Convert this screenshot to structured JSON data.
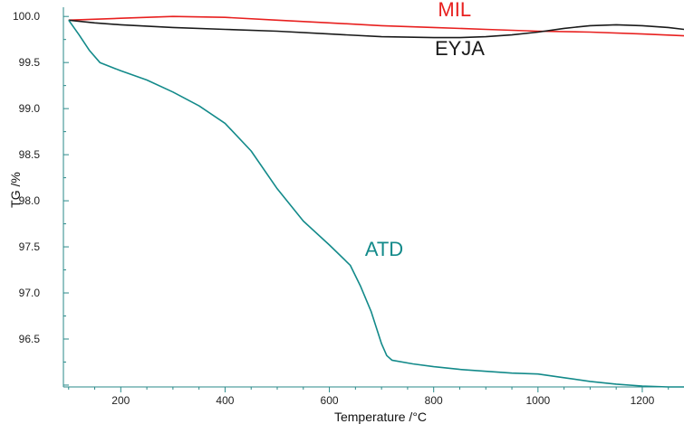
{
  "chart_data": {
    "type": "line",
    "title": "",
    "xlabel": "Temperature /°C",
    "ylabel": "TG /%",
    "xlim": [
      90,
      1280
    ],
    "ylim": [
      95.98,
      100.1
    ],
    "x_ticks": [
      200,
      400,
      600,
      800,
      1000,
      1200
    ],
    "x_tick_labels": [
      "200",
      "400",
      "600",
      "800",
      "1000",
      "1200"
    ],
    "y_ticks": [
      96.5,
      97.0,
      97.5,
      98.0,
      98.5,
      99.0,
      99.5,
      100.0
    ],
    "y_tick_labels": [
      "96.5",
      "97.0",
      "97.5",
      "98.0",
      "98.5",
      "99.0",
      "99.5",
      "100.0"
    ],
    "grid": false,
    "legend": "inline labels next to curves",
    "series": [
      {
        "name": "MIL",
        "color": "#e8201f",
        "x": [
          100,
          200,
          300,
          400,
          500,
          600,
          700,
          800,
          900,
          1000,
          1100,
          1200,
          1280
        ],
        "values": [
          99.96,
          99.98,
          100.0,
          99.99,
          99.96,
          99.93,
          99.9,
          99.88,
          99.86,
          99.84,
          99.83,
          99.81,
          99.79
        ]
      },
      {
        "name": "EYJA",
        "color": "#1a1a1a",
        "x": [
          100,
          150,
          200,
          300,
          400,
          500,
          600,
          700,
          800,
          850,
          900,
          950,
          1000,
          1050,
          1100,
          1150,
          1200,
          1250,
          1280
        ],
        "values": [
          99.96,
          99.93,
          99.91,
          99.88,
          99.86,
          99.84,
          99.81,
          99.78,
          99.77,
          99.77,
          99.78,
          99.8,
          99.83,
          99.87,
          99.9,
          99.91,
          99.9,
          99.88,
          99.86
        ]
      },
      {
        "name": "ATD",
        "color": "#138a8a",
        "x": [
          100,
          120,
          140,
          160,
          200,
          250,
          300,
          350,
          400,
          450,
          500,
          550,
          600,
          640,
          660,
          680,
          700,
          710,
          720,
          760,
          800,
          850,
          900,
          950,
          1000,
          1050,
          1100,
          1150,
          1200,
          1250,
          1280
        ],
        "values": [
          99.96,
          99.8,
          99.63,
          99.5,
          99.41,
          99.31,
          99.18,
          99.03,
          98.84,
          98.54,
          98.13,
          97.78,
          97.52,
          97.3,
          97.07,
          96.8,
          96.45,
          96.32,
          96.27,
          96.23,
          96.2,
          96.17,
          96.15,
          96.13,
          96.12,
          96.08,
          96.04,
          96.01,
          95.99,
          95.98,
          95.98
        ]
      }
    ],
    "annotations": [
      {
        "text": "MIL",
        "color": "#e8201f",
        "x": 840,
        "y": 100.0
      },
      {
        "text": "EYJA",
        "color": "#1a1a1a",
        "x": 850,
        "y": 99.58
      },
      {
        "text": "ATD",
        "color": "#138a8a",
        "x": 705,
        "y": 97.4
      }
    ]
  }
}
